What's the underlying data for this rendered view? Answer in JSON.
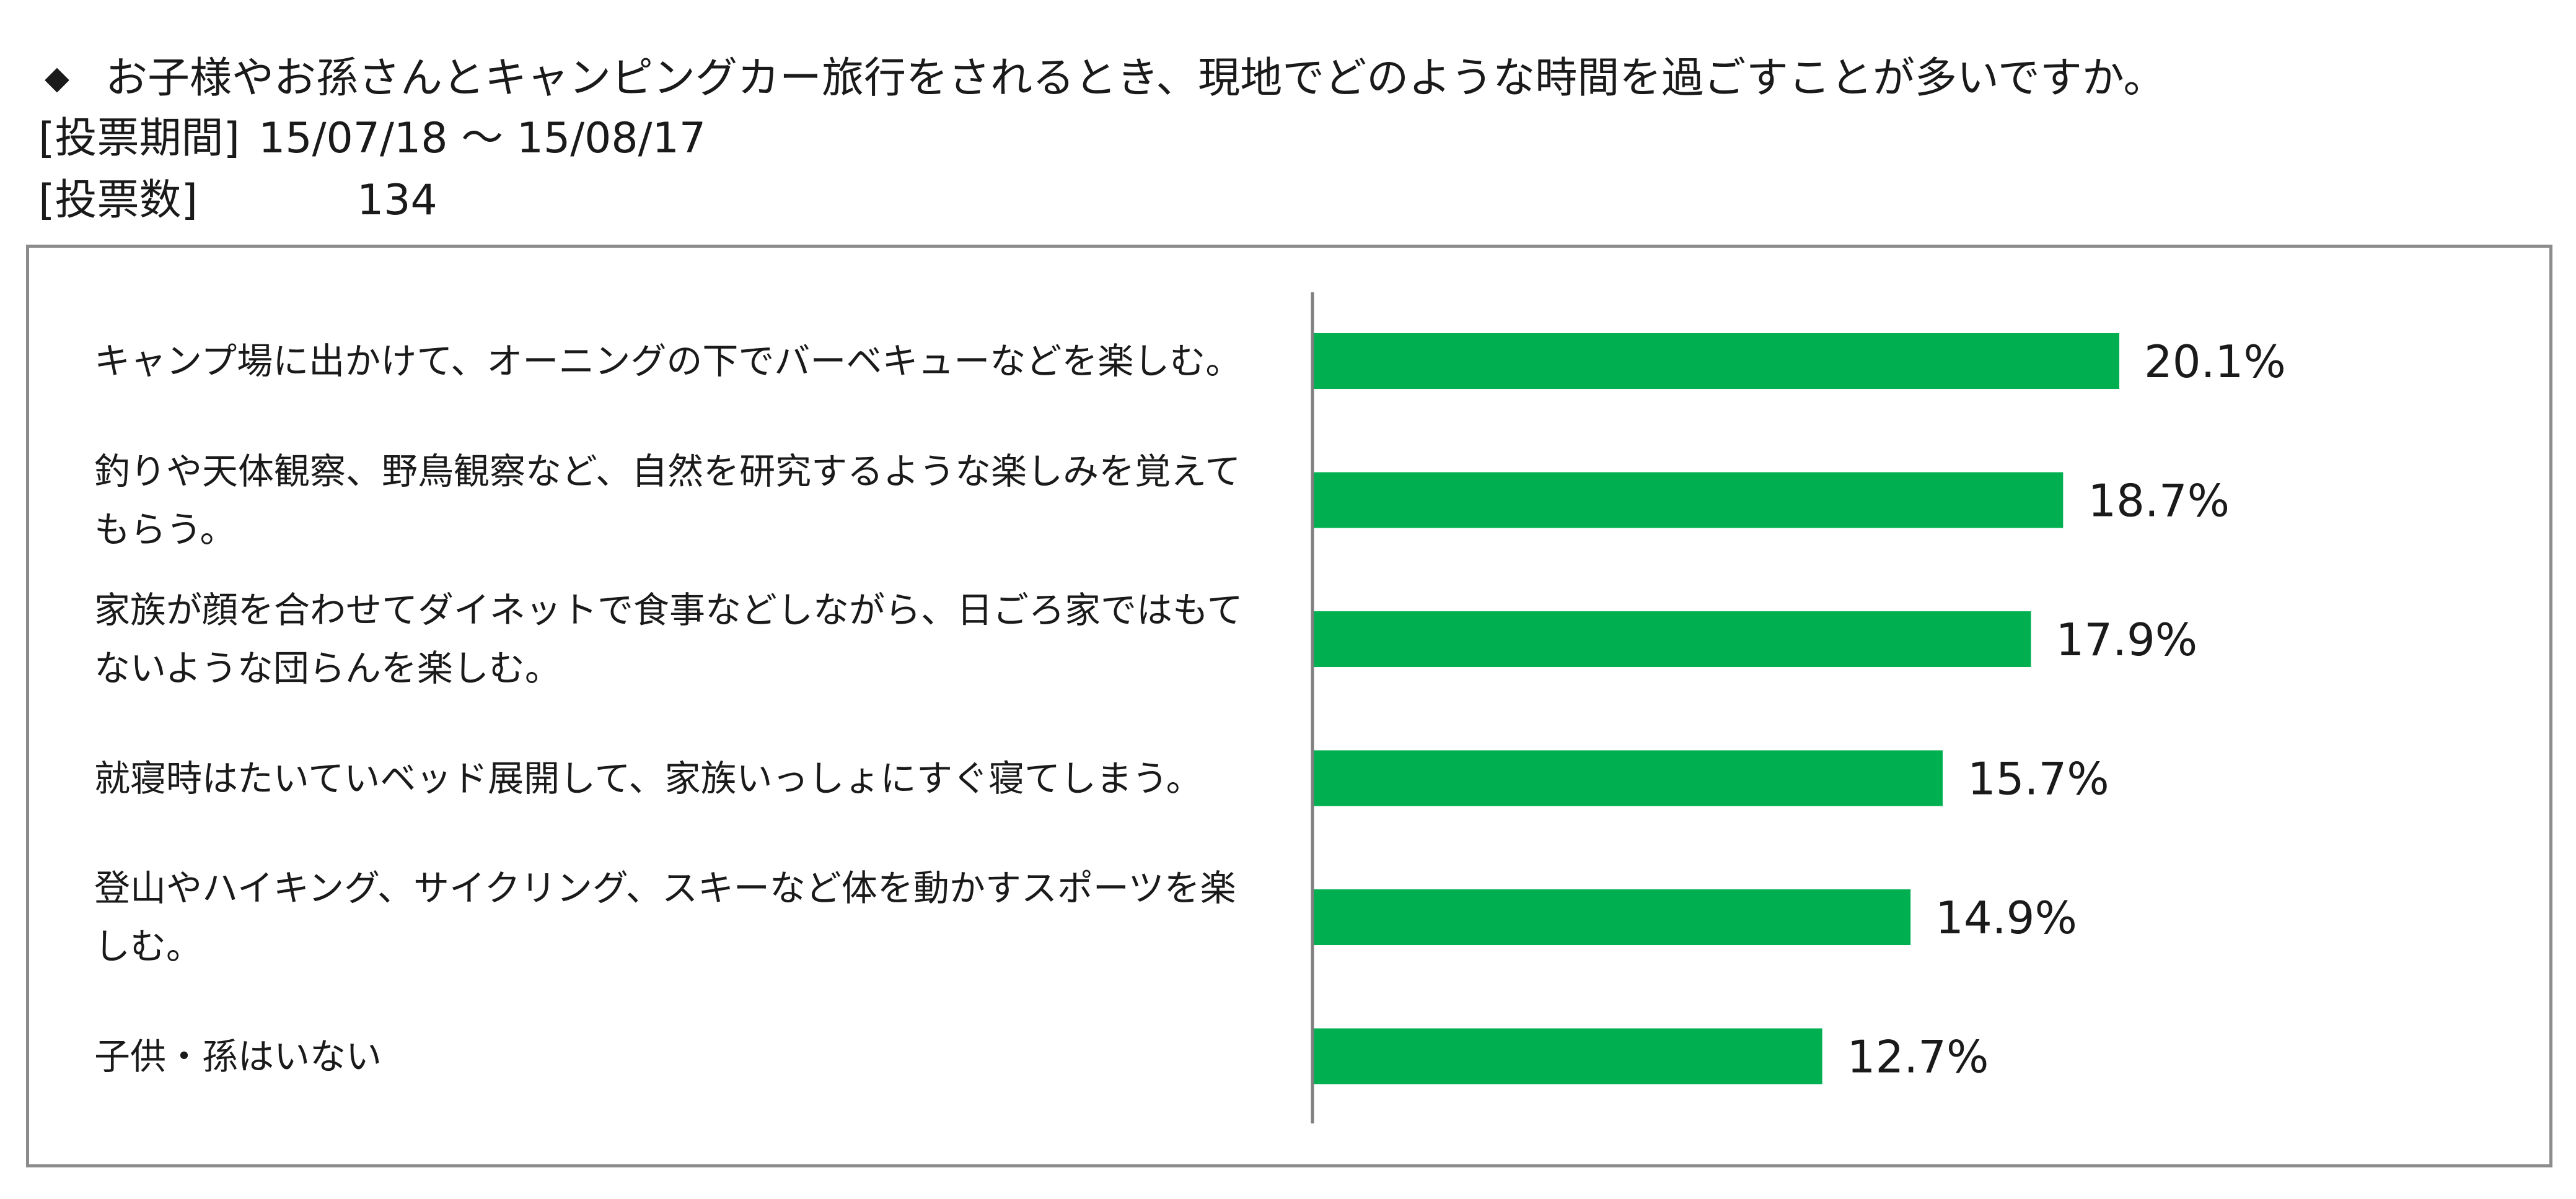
{
  "header": {
    "bullet": "◆",
    "question": "お子様やお孫さんとキャンピングカー旅行をされるとき、現地でどのような時間を過ごすことが多いですか。",
    "period_label": "[投票期間]",
    "period_value": "15/07/18 ～ 15/08/17",
    "count_label": "[投票数]",
    "count_value": "134"
  },
  "colors": {
    "bar": "#00b050",
    "axis": "#7f7f7f",
    "frame": "#8c8c8c",
    "text": "#1a1a1a"
  },
  "chart_data": {
    "type": "bar",
    "orientation": "horizontal",
    "title": "",
    "xlabel": "",
    "ylabel": "",
    "xlim": [
      0,
      20.1
    ],
    "grid": false,
    "legend": "none",
    "categories": [
      "キャンプ場に出かけて、オーニングの下でバーベキューなどを楽しむ。",
      "釣りや天体観察、野鳥観察など、自然を研究するような楽しみを覚えてもらう。",
      "家族が顔を合わせてダイネットで食事などしながら、日ごろ家ではもてないような団らんを楽しむ。",
      "就寝時はたいていベッド展開して、家族いっしょにすぐ寝てしまう。",
      "登山やハイキング、サイクリング、スキーなど体を動かすスポーツを楽しむ。",
      "子供・孫はいない"
    ],
    "values": [
      20.1,
      18.7,
      17.9,
      15.7,
      14.9,
      12.7
    ],
    "value_labels": [
      "20.1%",
      "18.7%",
      "17.9%",
      "15.7%",
      "14.9%",
      "12.7%"
    ]
  }
}
